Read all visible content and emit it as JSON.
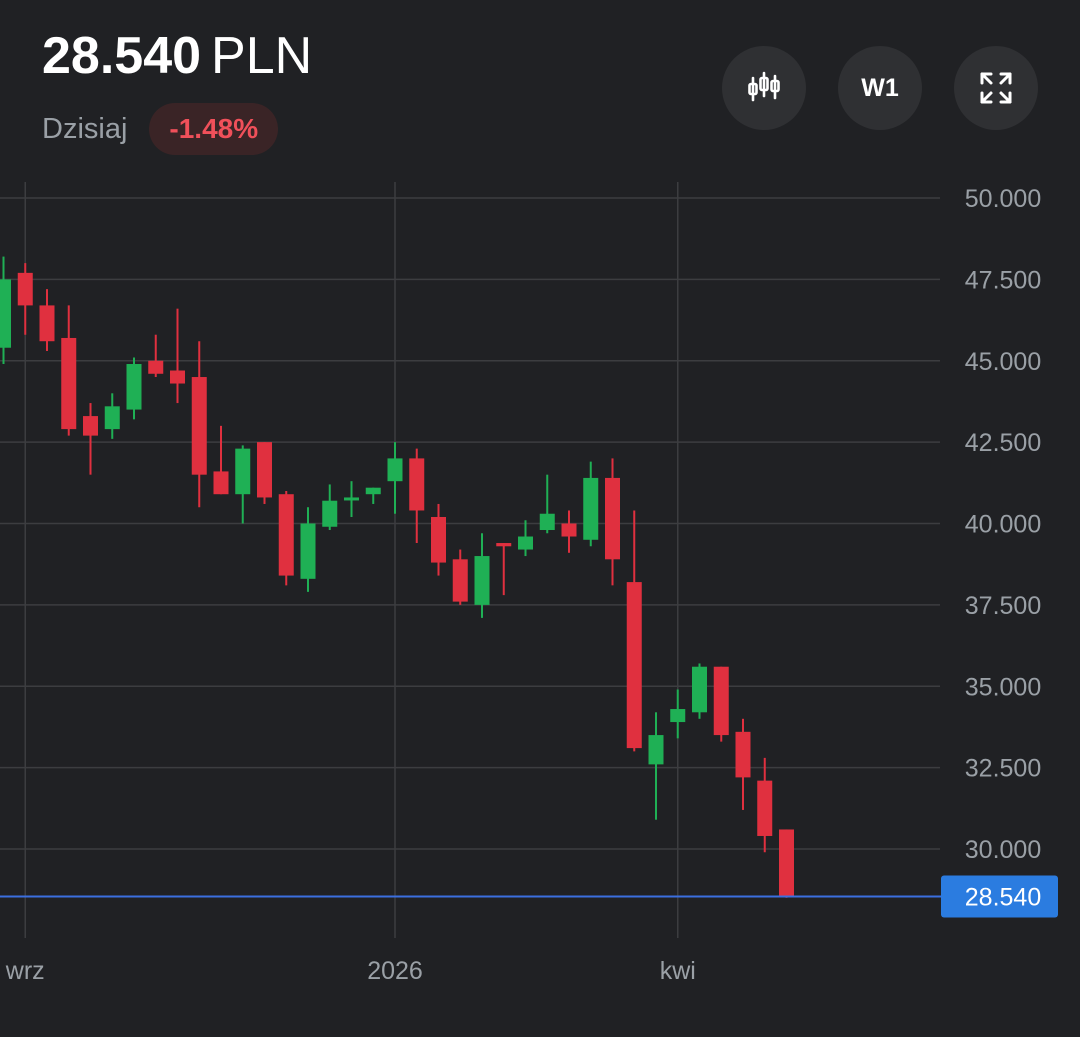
{
  "header": {
    "price": "28.540",
    "currency": "PLN",
    "period_label": "Dzisiaj",
    "change": "-1.48%"
  },
  "toolbar": {
    "chart_type_icon": "candlestick-icon",
    "interval_label": "W1",
    "fullscreen_icon": "expand-icon"
  },
  "colors": {
    "up": "#1fb055",
    "down": "#e0303f",
    "price_line": "#3b6fe0",
    "price_label_bg": "#2b7ce0"
  },
  "chart_data": {
    "type": "candlestick",
    "title": "",
    "xlabel": "",
    "ylabel": "",
    "ylim": [
      28.3,
      50.3
    ],
    "y_ticks": [
      "50.000",
      "47.500",
      "45.000",
      "42.500",
      "40.000",
      "37.500",
      "35.000",
      "32.500",
      "30.000"
    ],
    "y_tick_values": [
      50,
      47.5,
      45,
      42.5,
      40,
      37.5,
      35,
      32.5,
      30
    ],
    "x_labels": [
      {
        "label": "wrz",
        "index": 1
      },
      {
        "label": "2026",
        "index": 18
      },
      {
        "label": "kwi",
        "index": 31
      }
    ],
    "grid": true,
    "current_price": 28.54,
    "current_price_label": "28.540",
    "candles": [
      {
        "o": 45.4,
        "h": 48.2,
        "l": 44.9,
        "c": 47.5
      },
      {
        "o": 47.7,
        "h": 48.0,
        "l": 45.8,
        "c": 46.7
      },
      {
        "o": 46.7,
        "h": 47.2,
        "l": 45.3,
        "c": 45.6
      },
      {
        "o": 45.7,
        "h": 46.7,
        "l": 42.7,
        "c": 42.9
      },
      {
        "o": 43.3,
        "h": 43.7,
        "l": 41.5,
        "c": 42.7
      },
      {
        "o": 42.9,
        "h": 44.0,
        "l": 42.6,
        "c": 43.6
      },
      {
        "o": 43.5,
        "h": 45.1,
        "l": 43.2,
        "c": 44.9
      },
      {
        "o": 45.0,
        "h": 45.8,
        "l": 44.5,
        "c": 44.6
      },
      {
        "o": 44.7,
        "h": 46.6,
        "l": 43.7,
        "c": 44.3
      },
      {
        "o": 44.5,
        "h": 45.6,
        "l": 40.5,
        "c": 41.5
      },
      {
        "o": 41.6,
        "h": 43.0,
        "l": 40.9,
        "c": 40.9
      },
      {
        "o": 40.9,
        "h": 42.4,
        "l": 40.0,
        "c": 42.3
      },
      {
        "o": 42.5,
        "h": 42.5,
        "l": 40.6,
        "c": 40.8
      },
      {
        "o": 40.9,
        "h": 41.0,
        "l": 38.1,
        "c": 38.4
      },
      {
        "o": 38.3,
        "h": 40.5,
        "l": 37.9,
        "c": 40.0
      },
      {
        "o": 39.9,
        "h": 41.2,
        "l": 39.8,
        "c": 40.7
      },
      {
        "o": 40.8,
        "h": 41.3,
        "l": 40.2,
        "c": 40.8
      },
      {
        "o": 40.9,
        "h": 41.1,
        "l": 40.6,
        "c": 41.1
      },
      {
        "o": 41.3,
        "h": 42.5,
        "l": 40.3,
        "c": 42.0
      },
      {
        "o": 42.0,
        "h": 42.3,
        "l": 39.4,
        "c": 40.4
      },
      {
        "o": 40.2,
        "h": 40.6,
        "l": 38.4,
        "c": 38.8
      },
      {
        "o": 38.9,
        "h": 39.2,
        "l": 37.5,
        "c": 37.6
      },
      {
        "o": 37.5,
        "h": 39.7,
        "l": 37.1,
        "c": 39.0
      },
      {
        "o": 39.4,
        "h": 39.4,
        "l": 37.8,
        "c": 39.3
      },
      {
        "o": 39.2,
        "h": 40.1,
        "l": 39.0,
        "c": 39.6
      },
      {
        "o": 39.8,
        "h": 41.5,
        "l": 39.7,
        "c": 40.3
      },
      {
        "o": 40.0,
        "h": 40.4,
        "l": 39.1,
        "c": 39.6
      },
      {
        "o": 39.5,
        "h": 41.9,
        "l": 39.3,
        "c": 41.4
      },
      {
        "o": 41.4,
        "h": 42.0,
        "l": 38.1,
        "c": 38.9
      },
      {
        "o": 38.2,
        "h": 40.4,
        "l": 33.0,
        "c": 33.1
      },
      {
        "o": 32.6,
        "h": 34.2,
        "l": 30.9,
        "c": 33.5
      },
      {
        "o": 33.9,
        "h": 34.9,
        "l": 33.4,
        "c": 34.3
      },
      {
        "o": 34.2,
        "h": 35.7,
        "l": 34.0,
        "c": 35.6
      },
      {
        "o": 35.6,
        "h": 35.6,
        "l": 33.3,
        "c": 33.5
      },
      {
        "o": 33.6,
        "h": 34.0,
        "l": 31.2,
        "c": 32.2
      },
      {
        "o": 32.1,
        "h": 32.8,
        "l": 29.9,
        "c": 30.4
      },
      {
        "o": 30.6,
        "h": 30.6,
        "l": 28.5,
        "c": 28.54
      }
    ]
  }
}
